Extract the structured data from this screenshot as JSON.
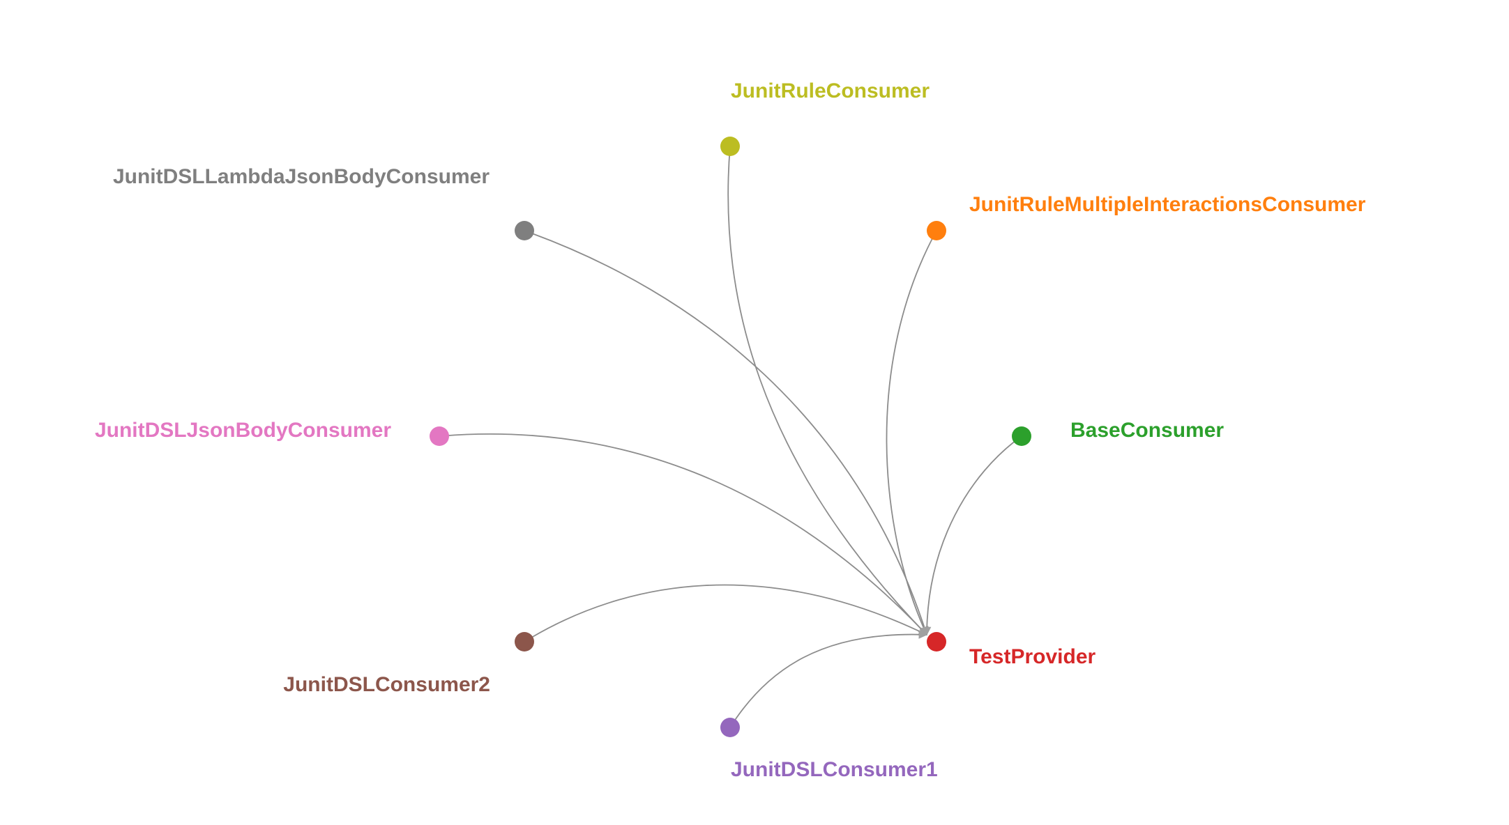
{
  "graph": {
    "target": "TestProvider",
    "arrow_color": "#a0a0a0",
    "link_color": "#8c8c8c",
    "nodes": [
      {
        "id": "JunitRuleConsumer",
        "label": "JunitRuleConsumer",
        "color": "#bcbd22"
      },
      {
        "id": "JunitDSLLambdaJsonBodyConsumer",
        "label": "JunitDSLLambdaJsonBodyConsumer",
        "color": "#7f7f7f"
      },
      {
        "id": "JunitRuleMultipleInteractionsConsumer",
        "label": "JunitRuleMultipleInteractionsConsumer",
        "color": "#ff7f0e"
      },
      {
        "id": "JunitDSLJsonBodyConsumer",
        "label": "JunitDSLJsonBodyConsumer",
        "color": "#e377c2"
      },
      {
        "id": "BaseConsumer",
        "label": "BaseConsumer",
        "color": "#2ca02c"
      },
      {
        "id": "JunitDSLConsumer2",
        "label": "JunitDSLConsumer2",
        "color": "#8c564b"
      },
      {
        "id": "TestProvider",
        "label": "TestProvider",
        "color": "#d62728"
      },
      {
        "id": "JunitDSLConsumer1",
        "label": "JunitDSLConsumer1",
        "color": "#9467bd"
      }
    ],
    "links": [
      {
        "source": "JunitRuleConsumer",
        "target": "TestProvider"
      },
      {
        "source": "JunitDSLLambdaJsonBodyConsumer",
        "target": "TestProvider"
      },
      {
        "source": "JunitRuleMultipleInteractionsConsumer",
        "target": "TestProvider"
      },
      {
        "source": "JunitDSLJsonBodyConsumer",
        "target": "TestProvider"
      },
      {
        "source": "BaseConsumer",
        "target": "TestProvider"
      },
      {
        "source": "JunitDSLConsumer2",
        "target": "TestProvider"
      },
      {
        "source": "JunitDSLConsumer1",
        "target": "TestProvider"
      }
    ]
  }
}
